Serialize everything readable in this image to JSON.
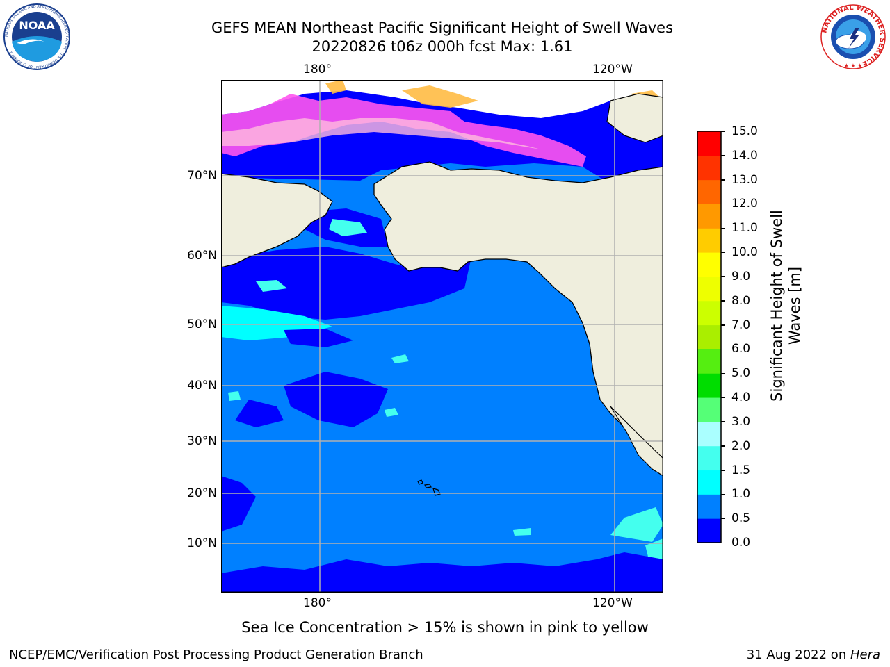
{
  "title": {
    "line1": "GEFS MEAN Northeast Pacific Significant Height of Swell Waves",
    "line2": "20220826 t06z 000h fcst   Max: 1.61"
  },
  "map": {
    "lon_ticks_top": [
      "180°",
      "120°W"
    ],
    "lon_ticks_bottom": [
      "180°",
      "120°W"
    ],
    "lat_ticks": [
      "70°N",
      "60°N",
      "50°N",
      "40°N",
      "30°N",
      "20°N",
      "10°N"
    ],
    "colors": {
      "ocean_main": "#0080ff",
      "ocean_dark": "#0000ff",
      "ocean_light": "#00ffff",
      "land": "#efeedd",
      "ice_pink": "#ff55ee",
      "ice_orange": "#ffbb44"
    }
  },
  "colorbar": {
    "label_line1": "Significant Height of Swell",
    "label_line2": "Waves [m]",
    "ticks": [
      "0.0",
      "0.5",
      "1.0",
      "1.5",
      "2.0",
      "3.0",
      "4.0",
      "5.0",
      "6.0",
      "7.0",
      "8.0",
      "9.0",
      "10.0",
      "11.0",
      "12.0",
      "13.0",
      "14.0",
      "15.0"
    ],
    "colors": [
      "#0000ff",
      "#0080ff",
      "#00ffff",
      "#44ffee",
      "#aaffff",
      "#55ff77",
      "#00dd00",
      "#55ee11",
      "#aaee00",
      "#ccff00",
      "#eeff00",
      "#ffff00",
      "#ffcc00",
      "#ff9900",
      "#ff6600",
      "#ff3300",
      "#ff0000"
    ]
  },
  "note": "Sea Ice Concentration > 15% is shown in pink to yellow",
  "footer": {
    "left": "NCEP/EMC/Verification Post Processing Product Generation Branch",
    "right_date": "31 Aug 2022 on ",
    "right_machine": "Hera"
  },
  "logos": {
    "noaa_text": "NOAA",
    "noaa_ring": "NATIONAL OCEANIC AND ATMOSPHERIC ADMINISTRATION · U.S. DEPARTMENT OF COMMERCE",
    "nws_ring": "NATIONAL WEATHER SERVICE"
  }
}
